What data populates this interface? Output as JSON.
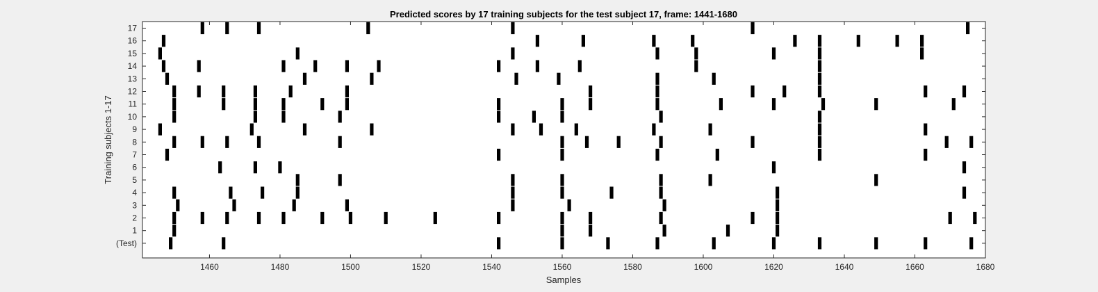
{
  "chart_data": {
    "type": "raster",
    "title": "Predicted scores by 17 training subjects for the test subject 17, frame: 1441-1680",
    "xlabel": "Samples",
    "ylabel": "Training subjects 1-17",
    "xlim": [
      1441,
      1680
    ],
    "xticks": [
      1460,
      1480,
      1500,
      1520,
      1540,
      1560,
      1580,
      1600,
      1620,
      1640,
      1660,
      1680
    ],
    "yticklabels": [
      "(Test)",
      "1",
      "2",
      "3",
      "4",
      "5",
      "6",
      "7",
      "8",
      "9",
      "10",
      "11",
      "12",
      "13",
      "14",
      "15",
      "16",
      "17"
    ],
    "mark_color": "#000000",
    "rows": [
      {
        "label": "17",
        "x": [
          1458,
          1465,
          1474,
          1505,
          1546,
          1614,
          1675
        ]
      },
      {
        "label": "16",
        "x": [
          1447,
          1553,
          1566,
          1586,
          1597,
          1626,
          1633,
          1644,
          1655,
          1662
        ]
      },
      {
        "label": "15",
        "x": [
          1446,
          1485,
          1546,
          1587,
          1598,
          1620,
          1633,
          1662
        ]
      },
      {
        "label": "14",
        "x": [
          1447,
          1457,
          1481,
          1490,
          1499,
          1508,
          1542,
          1553,
          1565,
          1598,
          1633
        ]
      },
      {
        "label": "13",
        "x": [
          1448,
          1487,
          1506,
          1547,
          1559,
          1587,
          1603,
          1633
        ]
      },
      {
        "label": "12",
        "x": [
          1450,
          1457,
          1464,
          1473,
          1483,
          1499,
          1568,
          1587,
          1614,
          1623,
          1633,
          1663,
          1674
        ]
      },
      {
        "label": "11",
        "x": [
          1450,
          1464,
          1473,
          1481,
          1492,
          1499,
          1542,
          1560,
          1568,
          1587,
          1605,
          1620,
          1634,
          1649,
          1671
        ]
      },
      {
        "label": "10",
        "x": [
          1450,
          1473,
          1481,
          1497,
          1542,
          1552,
          1560,
          1588,
          1633
        ]
      },
      {
        "label": "9",
        "x": [
          1446,
          1472,
          1487,
          1506,
          1546,
          1554,
          1564,
          1586,
          1602,
          1633,
          1663
        ]
      },
      {
        "label": "8",
        "x": [
          1450,
          1458,
          1465,
          1474,
          1497,
          1560,
          1567,
          1576,
          1588,
          1614,
          1633,
          1669,
          1676
        ]
      },
      {
        "label": "7",
        "x": [
          1448,
          1542,
          1560,
          1587,
          1604,
          1633,
          1663
        ]
      },
      {
        "label": "6",
        "x": [
          1463,
          1473,
          1480,
          1620,
          1674
        ]
      },
      {
        "label": "5",
        "x": [
          1485,
          1497,
          1546,
          1560,
          1588,
          1602,
          1649
        ]
      },
      {
        "label": "4",
        "x": [
          1450,
          1466,
          1475,
          1485,
          1546,
          1560,
          1574,
          1588,
          1621,
          1674
        ]
      },
      {
        "label": "3",
        "x": [
          1451,
          1467,
          1484,
          1499,
          1546,
          1562,
          1589,
          1621
        ]
      },
      {
        "label": "2",
        "x": [
          1450,
          1458,
          1465,
          1474,
          1481,
          1492,
          1500,
          1510,
          1524,
          1542,
          1560,
          1568,
          1588,
          1614,
          1621,
          1670,
          1677
        ]
      },
      {
        "label": "1",
        "x": [
          1450,
          1560,
          1568,
          1589,
          1607,
          1621
        ]
      },
      {
        "label": "(Test)",
        "x": [
          1449,
          1464,
          1542,
          1560,
          1573,
          1587,
          1603,
          1620,
          1633,
          1649,
          1663,
          1676
        ]
      }
    ]
  }
}
